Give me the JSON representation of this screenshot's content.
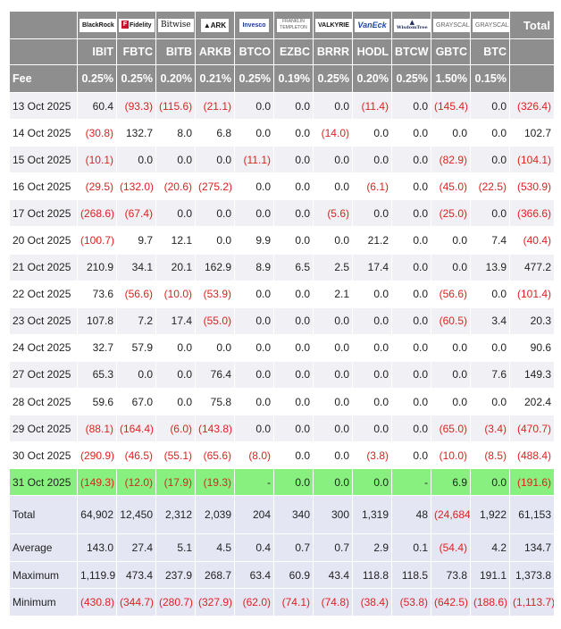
{
  "header": {
    "issuers": [
      "BlackRock",
      "Fidelity",
      "Bitwise",
      "ARK",
      "Invesco",
      "Franklin Templeton",
      "VALKYRIE",
      "VanEck",
      "WisdomTree",
      "GRAYSCALE",
      "GRAYSCALE"
    ],
    "issuer_subtext": {
      "ark": "INVEST",
      "franklin_top": "FRANKLIN",
      "franklin_bottom": "TEMPLETON",
      "fidelity_mark": "F"
    },
    "total_label": "Total",
    "tickers": [
      "IBIT",
      "FBTC",
      "BITB",
      "ARKB",
      "BTCO",
      "EZBC",
      "BRRR",
      "HODL",
      "BTCW",
      "GBTC",
      "BTC"
    ],
    "fee_label": "Fee",
    "fees": [
      "0.25%",
      "0.25%",
      "0.20%",
      "0.21%",
      "0.25%",
      "0.19%",
      "0.25%",
      "0.20%",
      "0.25%",
      "1.50%",
      "0.15%"
    ]
  },
  "rows": [
    {
      "date": "13 Oct 2025",
      "values": [
        "60.4",
        "(93.3)",
        "(115.6)",
        "(21.1)",
        "0.0",
        "0.0",
        "0.0",
        "(11.4)",
        "0.0",
        "(145.4)",
        "0.0"
      ],
      "total": "(326.4)"
    },
    {
      "date": "14 Oct 2025",
      "values": [
        "(30.8)",
        "132.7",
        "8.0",
        "6.8",
        "0.0",
        "0.0",
        "(14.0)",
        "0.0",
        "0.0",
        "0.0",
        "0.0"
      ],
      "total": "102.7"
    },
    {
      "date": "15 Oct 2025",
      "values": [
        "(10.1)",
        "0.0",
        "0.0",
        "0.0",
        "(11.1)",
        "0.0",
        "0.0",
        "0.0",
        "0.0",
        "(82.9)",
        "0.0"
      ],
      "total": "(104.1)"
    },
    {
      "date": "16 Oct 2025",
      "values": [
        "(29.5)",
        "(132.0)",
        "(20.6)",
        "(275.2)",
        "0.0",
        "0.0",
        "0.0",
        "(6.1)",
        "0.0",
        "(45.0)",
        "(22.5)"
      ],
      "total": "(530.9)"
    },
    {
      "date": "17 Oct 2025",
      "values": [
        "(268.6)",
        "(67.4)",
        "0.0",
        "0.0",
        "0.0",
        "0.0",
        "(5.6)",
        "0.0",
        "0.0",
        "(25.0)",
        "0.0"
      ],
      "total": "(366.6)"
    },
    {
      "date": "20 Oct 2025",
      "values": [
        "(100.7)",
        "9.7",
        "12.1",
        "0.0",
        "9.9",
        "0.0",
        "0.0",
        "21.2",
        "0.0",
        "0.0",
        "7.4"
      ],
      "total": "(40.4)"
    },
    {
      "date": "21 Oct 2025",
      "values": [
        "210.9",
        "34.1",
        "20.1",
        "162.9",
        "8.9",
        "6.5",
        "2.5",
        "17.4",
        "0.0",
        "0.0",
        "13.9"
      ],
      "total": "477.2"
    },
    {
      "date": "22 Oct 2025",
      "values": [
        "73.6",
        "(56.6)",
        "(10.0)",
        "(53.9)",
        "0.0",
        "0.0",
        "2.1",
        "0.0",
        "0.0",
        "(56.6)",
        "0.0"
      ],
      "total": "(101.4)"
    },
    {
      "date": "23 Oct 2025",
      "values": [
        "107.8",
        "7.2",
        "17.4",
        "(55.0)",
        "0.0",
        "0.0",
        "0.0",
        "0.0",
        "0.0",
        "(60.5)",
        "3.4"
      ],
      "total": "20.3"
    },
    {
      "date": "24 Oct 2025",
      "values": [
        "32.7",
        "57.9",
        "0.0",
        "0.0",
        "0.0",
        "0.0",
        "0.0",
        "0.0",
        "0.0",
        "0.0",
        "0.0"
      ],
      "total": "90.6"
    },
    {
      "date": "27 Oct 2025",
      "values": [
        "65.3",
        "0.0",
        "0.0",
        "76.4",
        "0.0",
        "0.0",
        "0.0",
        "0.0",
        "0.0",
        "0.0",
        "7.6"
      ],
      "total": "149.3"
    },
    {
      "date": "28 Oct 2025",
      "values": [
        "59.6",
        "67.0",
        "0.0",
        "75.8",
        "0.0",
        "0.0",
        "0.0",
        "0.0",
        "0.0",
        "0.0",
        "0.0"
      ],
      "total": "202.4"
    },
    {
      "date": "29 Oct 2025",
      "values": [
        "(88.1)",
        "(164.4)",
        "(6.0)",
        "(143.8)",
        "0.0",
        "0.0",
        "0.0",
        "0.0",
        "0.0",
        "(65.0)",
        "(3.4)"
      ],
      "total": "(470.7)"
    },
    {
      "date": "30 Oct 2025",
      "values": [
        "(290.9)",
        "(46.5)",
        "(55.1)",
        "(65.6)",
        "(8.0)",
        "0.0",
        "0.0",
        "(3.8)",
        "0.0",
        "(10.0)",
        "(8.5)"
      ],
      "total": "(488.4)"
    },
    {
      "date": "31 Oct 2025",
      "values": [
        "(149.3)",
        "(12.0)",
        "(17.9)",
        "(19.3)",
        "-",
        "0.0",
        "0.0",
        "0.0",
        "-",
        "6.9",
        "0.0"
      ],
      "total": "(191.6)",
      "highlight": true
    }
  ],
  "summary": [
    {
      "label": "Total",
      "values": [
        "64,902",
        "12,450",
        "2,312",
        "2,039",
        "204",
        "340",
        "300",
        "1,319",
        "48",
        "(24,684)",
        "1,922"
      ],
      "total": "61,153"
    },
    {
      "label": "Average",
      "values": [
        "143.0",
        "27.4",
        "5.1",
        "4.5",
        "0.4",
        "0.7",
        "0.7",
        "2.9",
        "0.1",
        "(54.4)",
        "4.2"
      ],
      "total": "134.7"
    },
    {
      "label": "Maximum",
      "values": [
        "1,119.9",
        "473.4",
        "237.9",
        "268.7",
        "63.4",
        "60.9",
        "43.4",
        "118.8",
        "118.5",
        "73.8",
        "191.1"
      ],
      "total": "1,373.8"
    },
    {
      "label": "Minimum",
      "values": [
        "(430.8)",
        "(344.7)",
        "(280.7)",
        "(327.9)",
        "(62.0)",
        "(74.1)",
        "(74.8)",
        "(38.4)",
        "(53.8)",
        "(642.5)",
        "(188.6)"
      ],
      "total": "(1,113.7)"
    }
  ],
  "colors": {
    "header_bg": "#8e8e8e",
    "negative": "#e01f1f",
    "highlight": "#88f07f",
    "summary_bg": "#e4e6f4",
    "stripe": "#f1f1f5"
  }
}
